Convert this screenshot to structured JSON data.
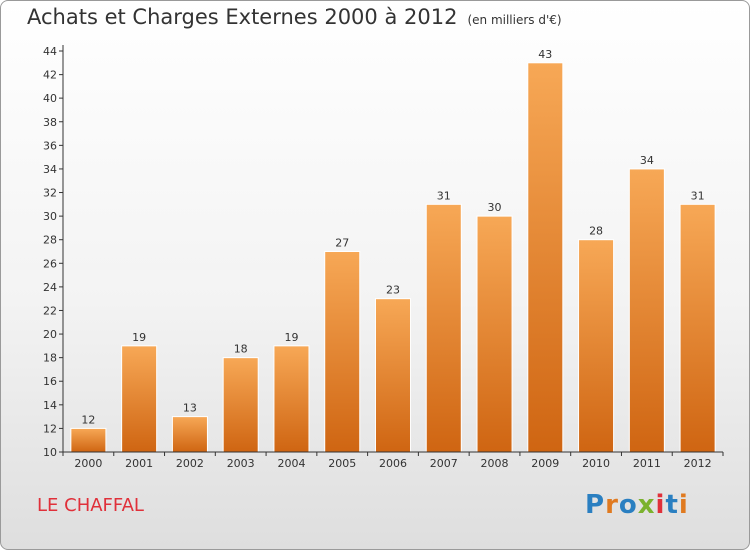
{
  "title": "Achats et Charges Externes 2000 à 2012",
  "unit": "(en milliers d'€)",
  "town": "LE CHAFFAL",
  "logo": {
    "text": "Proxiti",
    "colors": [
      "#2a7fc1",
      "#e07a20",
      "#2a7fc1",
      "#7bb22e",
      "#e0303a",
      "#2a7fc1",
      "#e07a20"
    ]
  },
  "colors": {
    "bar_light": "#f7a856",
    "bar_dark": "#cf6512",
    "town": "#e0303a"
  },
  "chart_data": {
    "type": "bar",
    "title": "Achats et Charges Externes 2000 à 2012",
    "subtitle": "(en milliers d'€)",
    "categories": [
      "2000",
      "2001",
      "2002",
      "2003",
      "2004",
      "2005",
      "2006",
      "2007",
      "2008",
      "2009",
      "2010",
      "2011",
      "2012"
    ],
    "values": [
      12,
      19,
      13,
      18,
      19,
      27,
      23,
      31,
      30,
      43,
      28,
      34,
      31
    ],
    "ylim": [
      10,
      44
    ],
    "yticks": [
      10,
      12,
      14,
      16,
      18,
      20,
      22,
      24,
      26,
      28,
      30,
      32,
      34,
      36,
      38,
      40,
      42,
      44
    ],
    "xlabel": "",
    "ylabel": "",
    "grid": false
  }
}
